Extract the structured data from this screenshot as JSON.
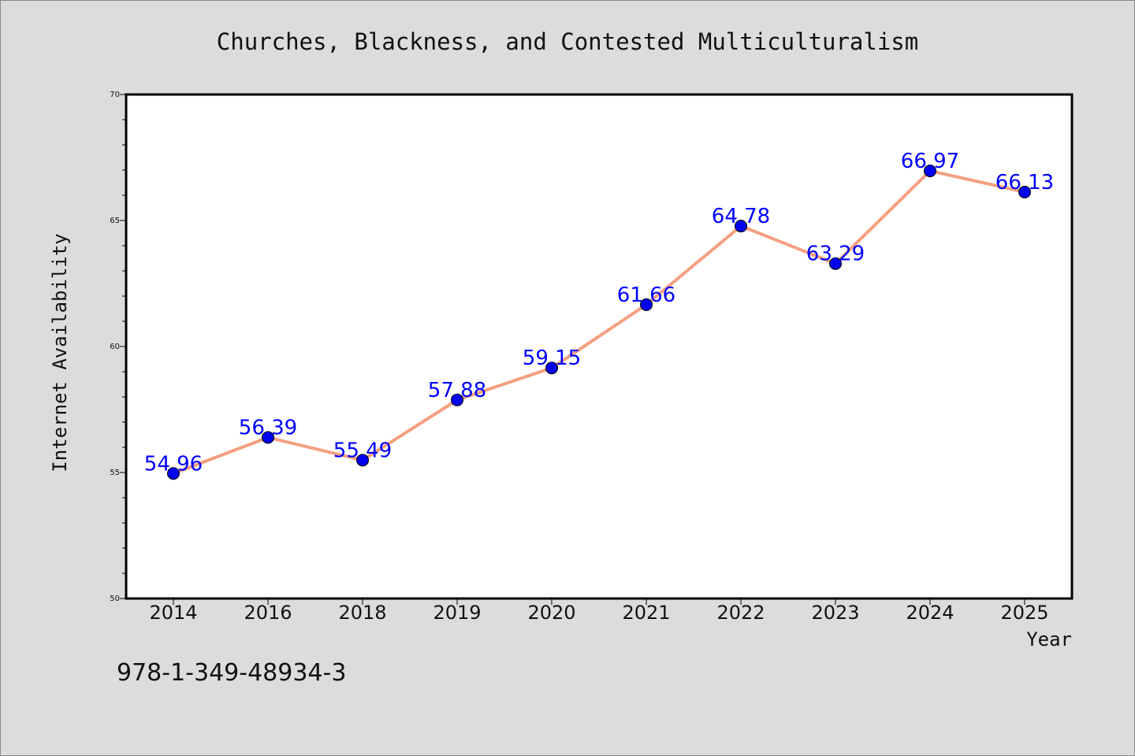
{
  "chart_data": {
    "type": "line",
    "title": "Churches, Blackness, and Contested Multiculturalism",
    "xlabel": "Year",
    "ylabel": "Internet Availability",
    "categories": [
      "2014",
      "2016",
      "2018",
      "2019",
      "2020",
      "2021",
      "2022",
      "2023",
      "2024",
      "2025"
    ],
    "series": [
      {
        "values": [
          54.96,
          56.39,
          55.49,
          57.88,
          59.15,
          61.66,
          64.78,
          63.29,
          66.97,
          66.13
        ],
        "labels": [
          "54.96",
          "56.39",
          "55.49",
          "57.88",
          "59.15",
          "61.66",
          "64.78",
          "63.29",
          "66.97",
          "66.13"
        ],
        "line_color": "#f4a080",
        "marker_color": "#0000ee",
        "label_color": "#0000ff"
      }
    ],
    "ylim": [
      50,
      70
    ],
    "yticks": [
      50,
      55,
      60,
      65,
      70
    ],
    "grid": false,
    "legend": "none"
  },
  "footer": {
    "isbn": "978-1-349-48934-3"
  },
  "colors": {
    "background": "#dcdcdc",
    "plot_area": "#ffffff"
  }
}
